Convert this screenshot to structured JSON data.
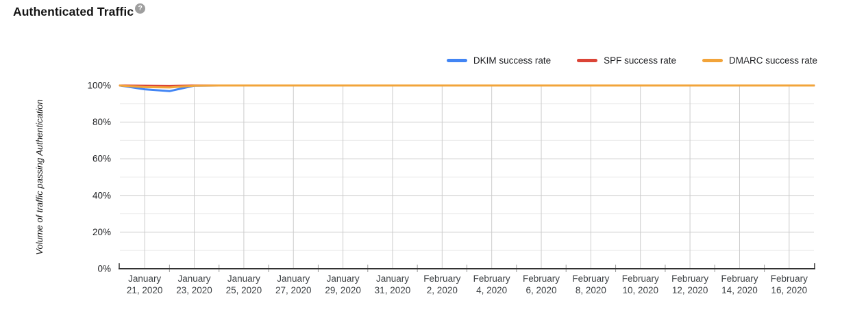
{
  "header": {
    "title": "Authenticated Traffic",
    "help_icon_glyph": "?"
  },
  "colors": {
    "dkim": "#4285F4",
    "spf": "#DB4437",
    "dmarc": "#F2A43A",
    "grid_major": "#cccccc",
    "grid_minor": "#ebebeb",
    "axis_line": "#333333",
    "minor_tick": "#999999",
    "help_icon_bg": "#9e9e9e"
  },
  "chart_data": {
    "type": "line",
    "title": "Authenticated Traffic",
    "xlabel": "",
    "ylabel": "Volume of traffic passing Authentication",
    "ylim": [
      0,
      100
    ],
    "grid": "on",
    "legend_position": "top-right",
    "y_ticks": [
      {
        "label": "0%",
        "value": 0
      },
      {
        "label": "20%",
        "value": 20
      },
      {
        "label": "40%",
        "value": 40
      },
      {
        "label": "60%",
        "value": 60
      },
      {
        "label": "80%",
        "value": 80
      },
      {
        "label": "100%",
        "value": 100
      }
    ],
    "x": [
      "Jan 20, 2020",
      "Jan 21, 2020",
      "Jan 22, 2020",
      "Jan 23, 2020",
      "Jan 24, 2020",
      "Jan 25, 2020",
      "Jan 26, 2020",
      "Jan 27, 2020",
      "Jan 28, 2020",
      "Jan 29, 2020",
      "Jan 30, 2020",
      "Jan 31, 2020",
      "Feb 1, 2020",
      "Feb 2, 2020",
      "Feb 3, 2020",
      "Feb 4, 2020",
      "Feb 5, 2020",
      "Feb 6, 2020",
      "Feb 7, 2020",
      "Feb 8, 2020",
      "Feb 9, 2020",
      "Feb 10, 2020",
      "Feb 11, 2020",
      "Feb 12, 2020",
      "Feb 13, 2020",
      "Feb 14, 2020",
      "Feb 15, 2020",
      "Feb 16, 2020",
      "Feb 17, 2020"
    ],
    "x_tick_indices": [
      1,
      3,
      5,
      7,
      9,
      11,
      13,
      15,
      17,
      19,
      21,
      23,
      25,
      27
    ],
    "x_tick_labels": [
      {
        "line1": "January",
        "line2": "21, 2020"
      },
      {
        "line1": "January",
        "line2": "23, 2020"
      },
      {
        "line1": "January",
        "line2": "25, 2020"
      },
      {
        "line1": "January",
        "line2": "27, 2020"
      },
      {
        "line1": "January",
        "line2": "29, 2020"
      },
      {
        "line1": "January",
        "line2": "31, 2020"
      },
      {
        "line1": "February",
        "line2": "2, 2020"
      },
      {
        "line1": "February",
        "line2": "4, 2020"
      },
      {
        "line1": "February",
        "line2": "6, 2020"
      },
      {
        "line1": "February",
        "line2": "8, 2020"
      },
      {
        "line1": "February",
        "line2": "10, 2020"
      },
      {
        "line1": "February",
        "line2": "12, 2020"
      },
      {
        "line1": "February",
        "line2": "14, 2020"
      },
      {
        "line1": "February",
        "line2": "16, 2020"
      }
    ],
    "series": [
      {
        "name": "DKIM success rate",
        "color": "#4285F4",
        "values": [
          100,
          97.9,
          96.9,
          99.9,
          100,
          100,
          100,
          100,
          100,
          100,
          100,
          100,
          100,
          100,
          100,
          100,
          100,
          100,
          100,
          100,
          100,
          100,
          100,
          100,
          100,
          100,
          100,
          100,
          100
        ]
      },
      {
        "name": "SPF success rate",
        "color": "#DB4437",
        "values": [
          100,
          99.9,
          99.8,
          100,
          100,
          100,
          100,
          100,
          100,
          100,
          100,
          100,
          100,
          100,
          100,
          100,
          100,
          100,
          100,
          100,
          100,
          100,
          100,
          100,
          100,
          100,
          100,
          100,
          100
        ]
      },
      {
        "name": "DMARC success rate",
        "color": "#F2A43A",
        "values": [
          100,
          99.1,
          98.9,
          99.9,
          100,
          100,
          100,
          100,
          100,
          100,
          100,
          100,
          100,
          100,
          100,
          100,
          100,
          100,
          100,
          100,
          100,
          100,
          100,
          100,
          100,
          100,
          100,
          100,
          100
        ]
      }
    ]
  }
}
